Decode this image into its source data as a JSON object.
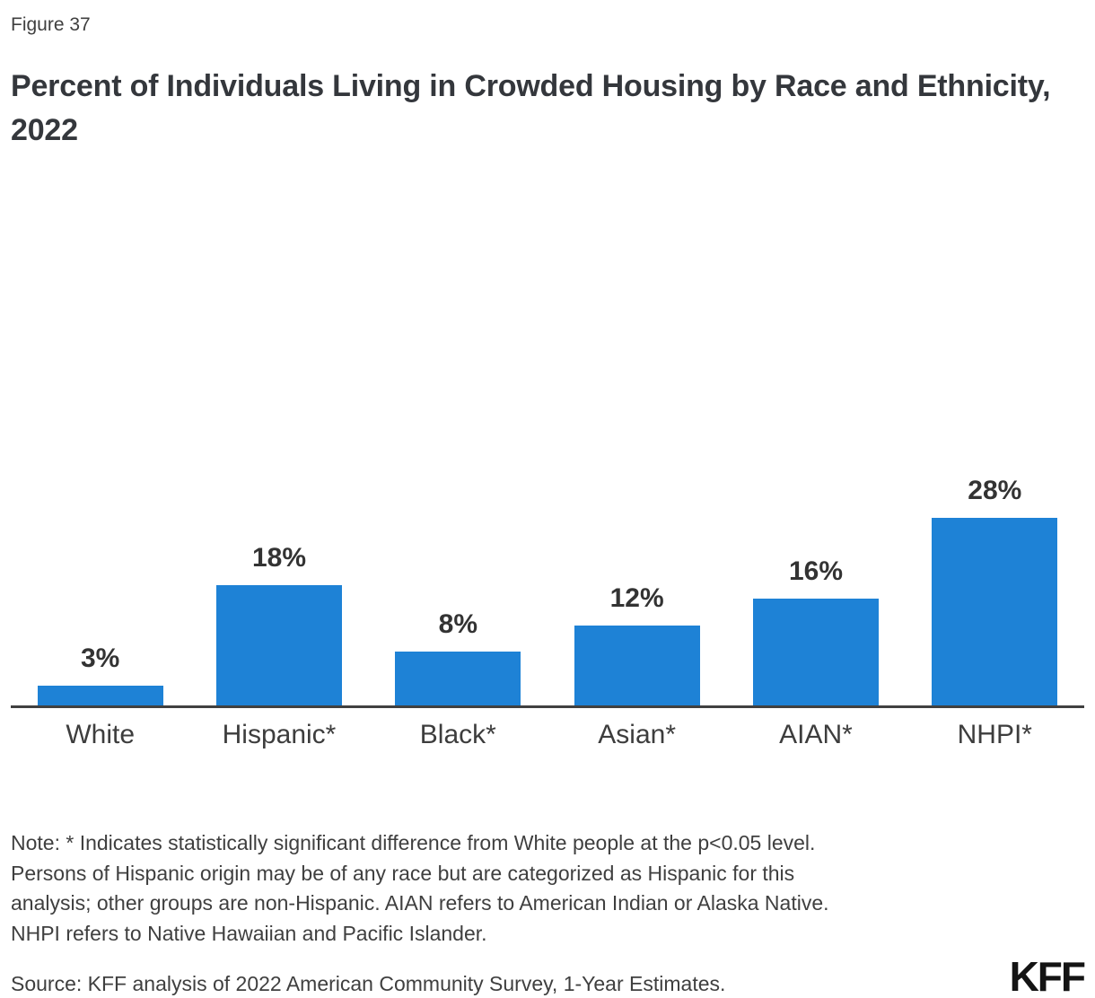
{
  "figure_label": "Figure 37",
  "title": "Percent of Individuals Living in Crowded Housing by Race and Ethnicity, 2022",
  "chart_data": {
    "type": "bar",
    "categories": [
      "White",
      "Hispanic*",
      "Black*",
      "Asian*",
      "AIAN*",
      "NHPI*"
    ],
    "values": [
      3,
      18,
      8,
      12,
      16,
      28
    ],
    "value_labels": [
      "3%",
      "18%",
      "8%",
      "12%",
      "16%",
      "28%"
    ],
    "title": "Percent of Individuals Living in Crowded Housing by Race and Ethnicity, 2022",
    "xlabel": "",
    "ylabel": "",
    "bar_color": "#1E82D6",
    "axis_color": "#404040",
    "grid": false,
    "legend": "none",
    "data_labels": "above-bars"
  },
  "note": {
    "lines": [
      "Note: * Indicates statistically significant difference from White people at the p<0.05 level.",
      "Persons of Hispanic origin may be of any race but are categorized as Hispanic for this",
      "analysis; other groups are non-Hispanic. AIAN refers to American Indian or Alaska Native.",
      "NHPI refers to Native Hawaiian and Pacific Islander."
    ]
  },
  "source": "Source: KFF analysis of 2022 American Community Survey, 1-Year Estimates.",
  "logo": "KFF"
}
